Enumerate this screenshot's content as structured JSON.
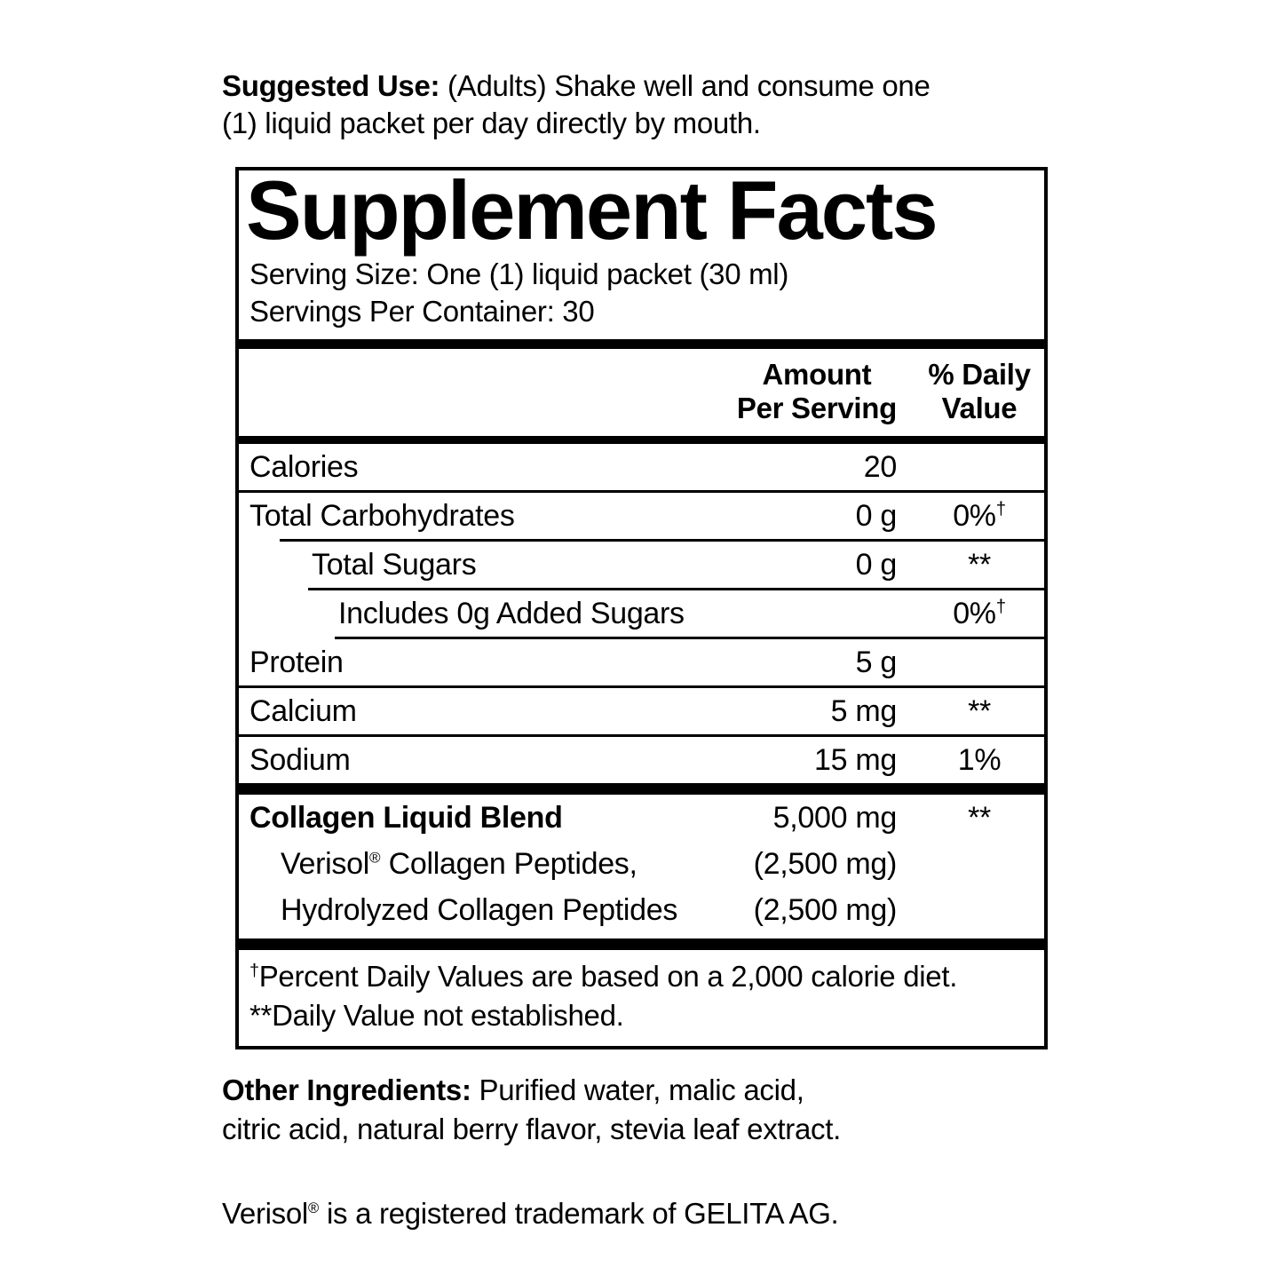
{
  "colors": {
    "text": "#000000",
    "background": "#ffffff",
    "rule": "#000000"
  },
  "suggested_use": {
    "label": "Suggested Use:",
    "line1": " (Adults) Shake well and consume one",
    "line2": "(1) liquid packet per day directly by mouth."
  },
  "panel": {
    "title": "Supplement Facts",
    "serving_size": "Serving Size: One (1) liquid packet (30 ml)",
    "servings_per_container": "Servings Per Container: 30",
    "header": {
      "amount_line1": "Amount",
      "amount_line2": "Per Serving",
      "dv_line1": "% Daily",
      "dv_line2": "Value"
    },
    "rows": [
      {
        "name": "Calories",
        "amount": "20",
        "dv": "",
        "dv_sup": ""
      },
      {
        "name": "Total Carbohydrates",
        "amount": "0 g",
        "dv": "0%",
        "dv_sup": "†"
      },
      {
        "name": "Total Sugars",
        "amount": "0 g",
        "dv": "**",
        "dv_sup": ""
      },
      {
        "name": "Includes 0g Added Sugars",
        "amount": "",
        "dv": "0%",
        "dv_sup": "†"
      },
      {
        "name": "Protein",
        "amount": "5 g",
        "dv": "",
        "dv_sup": ""
      },
      {
        "name": "Calcium",
        "amount": "5 mg",
        "dv": "**",
        "dv_sup": ""
      },
      {
        "name": "Sodium",
        "amount": "15 mg",
        "dv": "1%",
        "dv_sup": ""
      }
    ],
    "blend": {
      "name": "Collagen Liquid Blend",
      "amount": "5,000 mg",
      "dv": "**",
      "children": [
        {
          "name_pre": "Verisol",
          "name_sup": "®",
          "name_post": " Collagen Peptides,",
          "amount": "(2,500 mg)"
        },
        {
          "name_pre": "Hydrolyzed Collagen Peptides",
          "name_sup": "",
          "name_post": "",
          "amount": "(2,500 mg)"
        }
      ]
    },
    "footnotes": [
      {
        "prefix": "†",
        "text": "Percent Daily Values are based on a 2,000 calorie diet."
      },
      {
        "prefix": "**",
        "text": "Daily Value not established."
      }
    ]
  },
  "other_ingredients": {
    "label": "Other Ingredients:",
    "line1": " Purified water, malic acid,",
    "line2": "citric acid, natural berry flavor, stevia leaf extract."
  },
  "trademark": {
    "pre": "Verisol",
    "sup": "®",
    "post": " is a registered trademark of GELITA AG."
  }
}
